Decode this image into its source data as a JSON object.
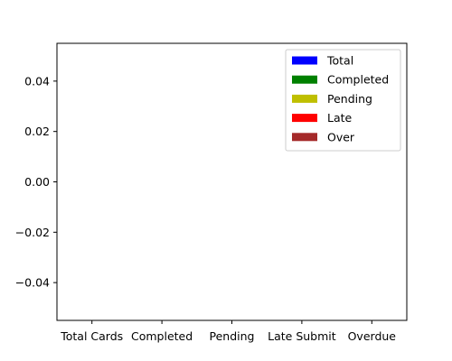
{
  "chart_data": {
    "type": "bar",
    "title": "",
    "xlabel": "",
    "ylabel": "",
    "categories": [
      "Total Cards",
      "Completed",
      "Pending",
      "Late Submit",
      "Overdue"
    ],
    "series": [
      {
        "name": "Total",
        "color": "#0000ff",
        "values": [
          0,
          0,
          0,
          0,
          0
        ]
      },
      {
        "name": "Completed",
        "color": "#008000",
        "values": [
          0,
          0,
          0,
          0,
          0
        ]
      },
      {
        "name": "Pending",
        "color": "#bfbf00",
        "values": [
          0,
          0,
          0,
          0,
          0
        ]
      },
      {
        "name": "Late",
        "color": "#ff0000",
        "values": [
          0,
          0,
          0,
          0,
          0
        ]
      },
      {
        "name": "Over",
        "color": "#a52a2a",
        "values": [
          0,
          0,
          0,
          0,
          0
        ]
      }
    ],
    "ylim": [
      -0.055,
      0.055
    ],
    "yticks": [
      -0.04,
      -0.02,
      0.0,
      0.02,
      0.04
    ],
    "ytick_labels": [
      "−0.04",
      "−0.02",
      "0.00",
      "0.02",
      "0.04"
    ],
    "grid": false,
    "legend_position": "top-right"
  }
}
